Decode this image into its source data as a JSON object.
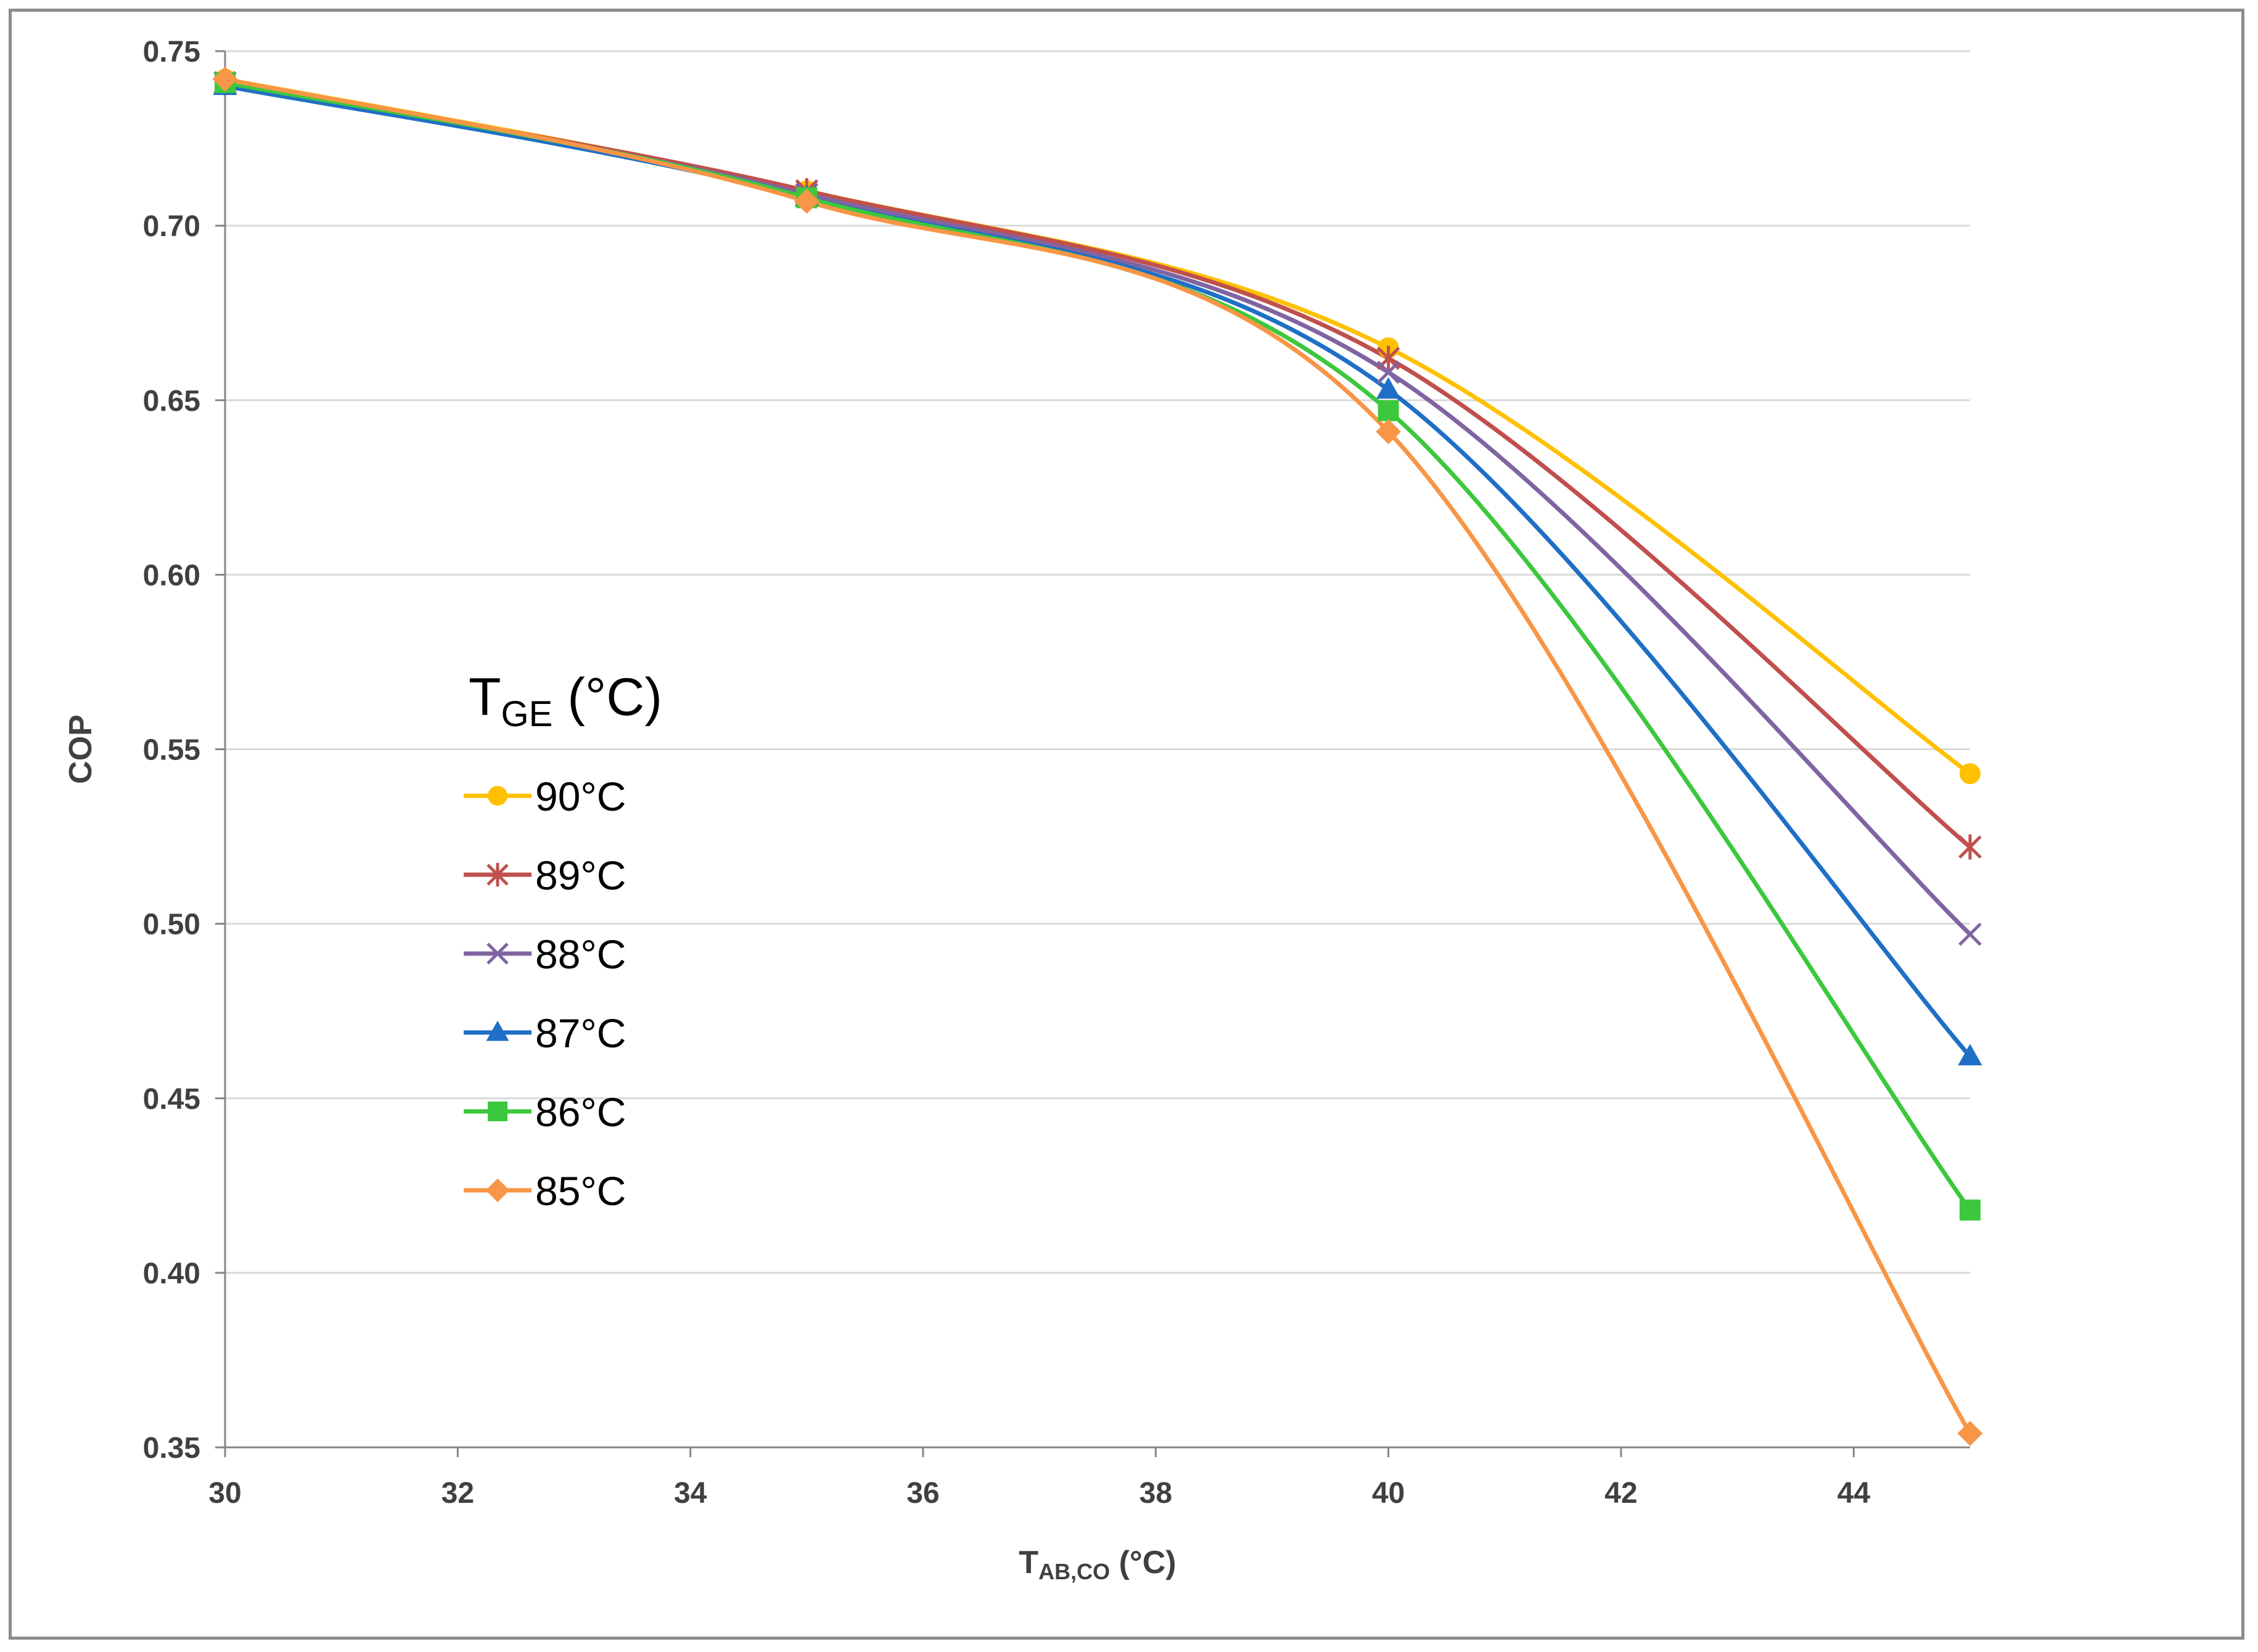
{
  "chart_data": {
    "type": "line",
    "title": "",
    "xlabel": {
      "main": "T",
      "sub": "AB,CO",
      "unit": " (°C)"
    },
    "ylabel": "COP",
    "xlim": [
      30,
      45
    ],
    "ylim": [
      0.35,
      0.75
    ],
    "x_ticks": [
      30,
      32,
      34,
      36,
      38,
      40,
      42,
      44
    ],
    "y_ticks": [
      0.35,
      0.4,
      0.45,
      0.5,
      0.55,
      0.6,
      0.65,
      0.7,
      0.75
    ],
    "grid": "horizontal",
    "legend": {
      "title_main": "T",
      "title_sub": "GE",
      "title_unit": " (°C)",
      "placement": "center-left"
    },
    "x": [
      30,
      35,
      40,
      45
    ],
    "series": [
      {
        "name": "90°C",
        "color": "#FFC000",
        "marker": "circle",
        "values": [
          0.742,
          0.71,
          0.665,
          0.543
        ]
      },
      {
        "name": "89°C",
        "color": "#C0504D",
        "marker": "asterisk",
        "values": [
          0.741,
          0.71,
          0.662,
          0.522
        ]
      },
      {
        "name": "88°C",
        "color": "#8064A2",
        "marker": "x",
        "values": [
          0.741,
          0.709,
          0.658,
          0.497
        ]
      },
      {
        "name": "87°C",
        "color": "#1F6FC6",
        "marker": "triangle",
        "values": [
          0.74,
          0.708,
          0.653,
          0.462
        ]
      },
      {
        "name": "86°C",
        "color": "#3CC83C",
        "marker": "square",
        "values": [
          0.741,
          0.708,
          0.647,
          0.418
        ]
      },
      {
        "name": "85°C",
        "color": "#F79646",
        "marker": "diamond",
        "values": [
          0.742,
          0.707,
          0.641,
          0.354
        ]
      }
    ]
  }
}
